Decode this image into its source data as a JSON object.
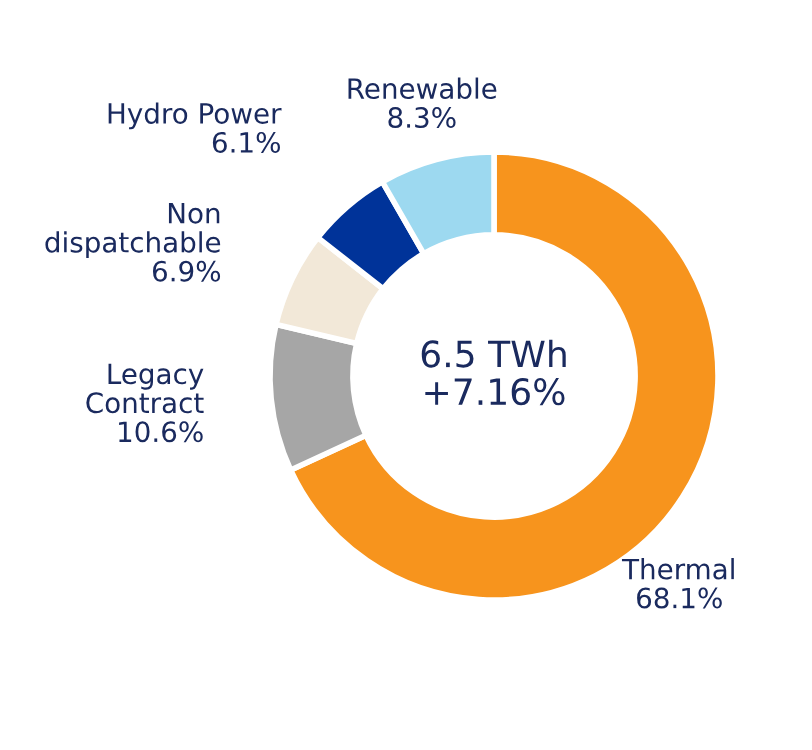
{
  "chart_data": {
    "type": "donut",
    "categories": [
      "Thermal",
      "Legacy Contract",
      "Non dispatchable",
      "Hydro Power",
      "Renewable"
    ],
    "values": [
      68.1,
      10.6,
      6.9,
      6.1,
      8.3
    ],
    "colors": [
      "#f7941d",
      "#a6a6a6",
      "#f2e8d8",
      "#003399",
      "#9dd9f0"
    ],
    "value_labels": [
      "68.1%",
      "10.6%",
      "6.9%",
      "6.1%",
      "8.3%"
    ],
    "annotations": [
      "6.5 TWh\n+7.16%"
    ]
  }
}
